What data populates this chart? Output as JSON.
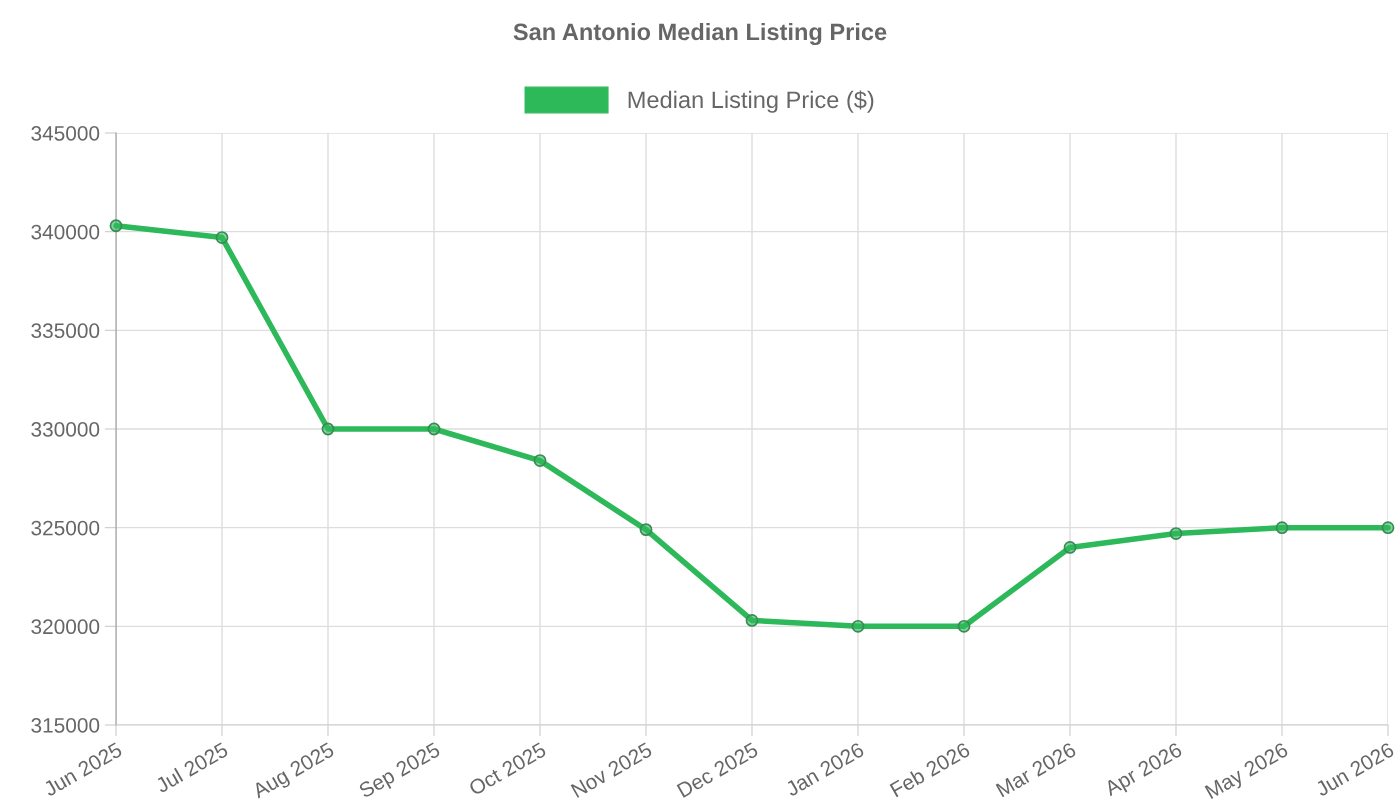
{
  "chart_data": {
    "type": "line",
    "title": "San Antonio Median Listing Price",
    "categories": [
      "Jun 2025",
      "Jul 2025",
      "Aug 2025",
      "Sep 2025",
      "Oct 2025",
      "Nov 2025",
      "Dec 2025",
      "Jan 2026",
      "Feb 2026",
      "Mar 2026",
      "Apr 2026",
      "May 2026",
      "Jun 2026"
    ],
    "series": [
      {
        "name": "Median Listing Price ($)",
        "color": "#2db85a",
        "values": [
          340300,
          339700,
          330000,
          330000,
          328400,
          324900,
          320300,
          320000,
          320000,
          324000,
          324700,
          325000,
          325000
        ]
      }
    ],
    "ylim": [
      315000,
      345000
    ],
    "yticks": [
      315000,
      320000,
      325000,
      330000,
      335000,
      340000,
      345000
    ],
    "grid": true,
    "legend": "top",
    "marker": "circle",
    "line_style": "solid"
  }
}
